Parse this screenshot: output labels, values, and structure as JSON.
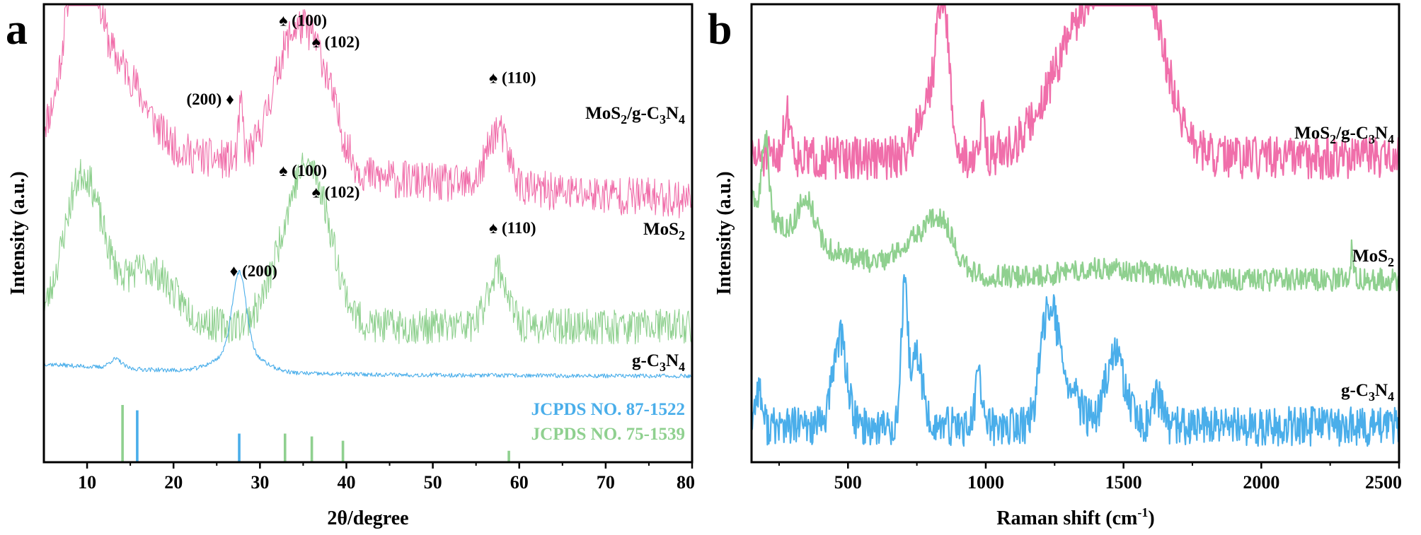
{
  "colors": {
    "pink": "#f06eaa",
    "green": "#8fd08f",
    "blue": "#4aaeea",
    "axis": "#000000"
  },
  "chart_data": [
    {
      "type": "line",
      "panel_letter": "a",
      "xlabel": "2θ/degree",
      "ylabel": "Intensity (a.u.)",
      "xlim": [
        5,
        80
      ],
      "xticks": [
        10,
        20,
        30,
        40,
        50,
        60,
        70,
        80
      ],
      "ylim": [
        0,
        12.8
      ],
      "series": [
        {
          "name": "MoS2/g-C3N4",
          "label_main": "MoS",
          "label_sub1": "2",
          "label_mid": "/g-C",
          "label_sub2": "3",
          "label_mid2": "N",
          "label_sub3": "4",
          "color_key": "pink",
          "baseline": 6.8,
          "noise": 0.55,
          "seed": 11,
          "peaks": [
            [
              9.3,
              5.5,
              1.6
            ],
            [
              13.5,
              2.2,
              3.0
            ],
            [
              27.8,
              1.5,
              0.25
            ],
            [
              33.5,
              3.2,
              2.2
            ],
            [
              37.0,
              2.4,
              2.0
            ],
            [
              57.5,
              1.6,
              1.2
            ]
          ],
          "decay": [
            2.5,
            0.02
          ]
        },
        {
          "name": "MoS2",
          "label_main": "MoS",
          "label_sub1": "2",
          "color_key": "green",
          "baseline": 3.8,
          "noise": 0.5,
          "seed": 23,
          "peaks": [
            [
              9.5,
              4.2,
              2.2
            ],
            [
              17.0,
              1.6,
              3.0
            ],
            [
              34.5,
              3.4,
              2.5
            ],
            [
              37.0,
              1.8,
              2.0
            ],
            [
              57.5,
              1.6,
              1.1
            ]
          ],
          "decay": [
            0,
            0
          ]
        },
        {
          "name": "g-C3N4",
          "label_main": "g-C",
          "label_sub1": "3",
          "label_mid": "N",
          "label_sub2": "4",
          "color_key": "blue",
          "baseline": 2.4,
          "noise": 0.06,
          "seed": 37,
          "peaks": [
            [
              13.3,
              0.25,
              0.7
            ],
            [
              27.6,
              2.2,
              0.8
            ],
            [
              27.6,
              0.6,
              2.5
            ]
          ],
          "decay": [
            0.35,
            0.05
          ]
        }
      ],
      "reference_bars": [
        {
          "label": "JCPDS NO. 87-1522",
          "color_key": "blue",
          "positions": [
            15.8,
            27.6
          ],
          "heights": [
            1.45,
            0.8
          ]
        },
        {
          "label": "JCPDS NO. 75-1539",
          "color_key": "green",
          "positions": [
            14.1,
            32.9,
            36.0,
            39.6,
            58.8
          ],
          "heights": [
            1.6,
            0.8,
            0.72,
            0.6,
            0.32
          ]
        }
      ],
      "annotations": [
        {
          "text": "♠ (100)",
          "x": 32.2,
          "y": 12.2
        },
        {
          "text": "♠ (102)",
          "x": 36.0,
          "y": 11.6
        },
        {
          "text": "(200) ♦",
          "x": 21.5,
          "y": 10.0
        },
        {
          "text": "♠ (110)",
          "x": 56.5,
          "y": 10.6
        },
        {
          "text": "♠ (100)",
          "x": 32.2,
          "y": 8.0
        },
        {
          "text": "♠ (102)",
          "x": 36.0,
          "y": 7.4
        },
        {
          "text": "♠ (110)",
          "x": 56.5,
          "y": 6.4
        },
        {
          "text": "♦ (200)",
          "x": 26.5,
          "y": 5.2
        }
      ]
    },
    {
      "type": "line",
      "panel_letter": "b",
      "xlabel": "Raman shift (cm",
      "xlabel_sup": "-1",
      "xlabel_end": ")",
      "ylabel": "Intensity (a.u.)",
      "xlim": [
        150,
        2500
      ],
      "xticks": [
        500,
        1000,
        1500,
        2000,
        2500
      ],
      "ylim": [
        0,
        12.8
      ],
      "series": [
        {
          "name": "MoS2/g-C3N4",
          "label_main": "MoS",
          "label_sub1": "2",
          "label_mid": "/g-C",
          "label_sub2": "3",
          "label_mid2": "N",
          "label_sub3": "4",
          "color_key": "pink",
          "baseline": 8.5,
          "noise": 0.6,
          "seed": 51,
          "peaks": [
            [
              280,
              1.2,
              15
            ],
            [
              790,
              1.6,
              40
            ],
            [
              845,
              4.0,
              22
            ],
            [
              990,
              1.2,
              8
            ],
            [
              1380,
              4.0,
              130
            ],
            [
              1560,
              4.0,
              90
            ]
          ],
          "decay": [
            0,
            0
          ]
        },
        {
          "name": "MoS2",
          "label_main": "MoS",
          "label_sub1": "2",
          "color_key": "green",
          "baseline": 5.1,
          "noise": 0.32,
          "seed": 63,
          "peaks": [
            [
              200,
              2.2,
              12
            ],
            [
              350,
              1.2,
              30
            ],
            [
              780,
              1.0,
              80
            ],
            [
              840,
              0.8,
              40
            ],
            [
              1450,
              0.3,
              150
            ],
            [
              2330,
              0.9,
              5
            ]
          ],
          "decay": [
            2.2,
            0.0035
          ]
        },
        {
          "name": "g-C3N4",
          "label_main": "g-C",
          "label_sub1": "3",
          "label_mid": "N",
          "label_sub2": "4",
          "color_key": "blue",
          "baseline": 1.0,
          "noise": 0.55,
          "seed": 77,
          "peaks": [
            [
              175,
              1.1,
              12
            ],
            [
              470,
              2.5,
              25
            ],
            [
              705,
              3.6,
              12
            ],
            [
              750,
              2.0,
              20
            ],
            [
              975,
              1.4,
              12
            ],
            [
              1230,
              3.3,
              30
            ],
            [
              1300,
              1.0,
              40
            ],
            [
              1470,
              2.0,
              35
            ],
            [
              1620,
              0.8,
              20
            ]
          ],
          "decay": [
            0,
            0
          ]
        }
      ]
    }
  ]
}
